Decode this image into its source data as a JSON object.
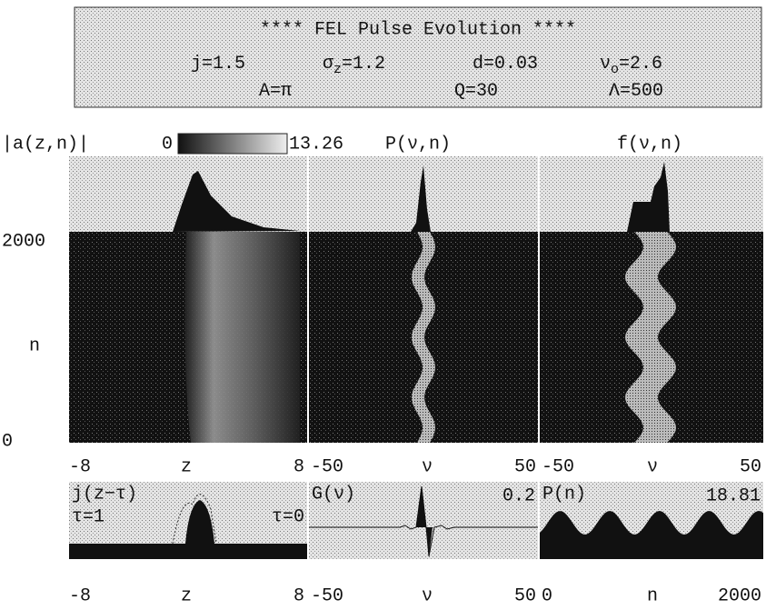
{
  "header": {
    "title": "****  FEL Pulse Evolution ****",
    "params": [
      {
        "base": "j=1.5"
      },
      {
        "base": "σ",
        "sub": "z",
        "rest": "=1.2"
      },
      {
        "base": "d=0.03"
      },
      {
        "base": "ν",
        "sub": "o",
        "rest": "=2.6"
      },
      {
        "base": "A=π"
      },
      {
        "base": "Q=30"
      },
      {
        "base": "Λ=500"
      }
    ]
  },
  "colorbar": {
    "label": "|a(z,n)|",
    "min": "0",
    "max": "13.26"
  },
  "panel_titles": [
    "P(ν,n)",
    "f(ν,n)"
  ],
  "y_axis": {
    "top": "2000",
    "label": "n",
    "bottom": "0"
  },
  "x_axes_top": [
    [
      "-8",
      "z",
      "8"
    ],
    [
      "-50",
      "ν",
      "50"
    ],
    [
      "-50",
      "ν",
      "50"
    ]
  ],
  "bottom_panels": [
    {
      "title": "j(z−τ)",
      "left_note": "τ=1",
      "right_note": "τ=0"
    },
    {
      "title": "G(ν)",
      "right_note": "0.2"
    },
    {
      "title": "P(n)",
      "right_note": "18.81"
    }
  ],
  "x_axes_bottom": [
    [
      "-8",
      "z",
      "8"
    ],
    [
      "-50",
      "ν",
      "50"
    ],
    [
      "0",
      "n",
      "2000"
    ]
  ]
}
